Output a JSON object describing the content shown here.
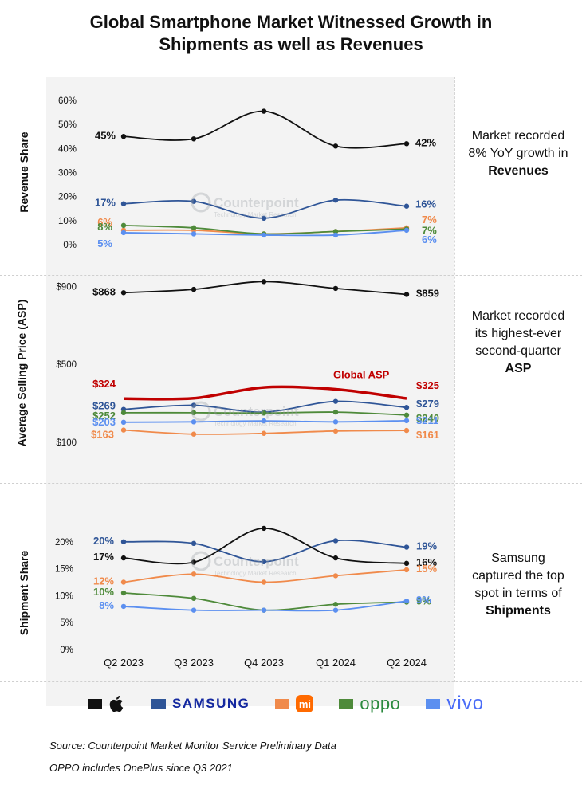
{
  "title": {
    "line1": "Global Smartphone Market Witnessed Growth in",
    "line2": "Shipments as well as Revenues"
  },
  "watermark": {
    "brand": "Counterpoint",
    "tagline": "Technology Market Research"
  },
  "colors": {
    "apple": "#111111",
    "samsung": "#2f5597",
    "xiaomi": "#f08a4b",
    "oppo": "#4e8a3a",
    "vivo": "#5b8ff0",
    "global_asp": "#c00000"
  },
  "panels": {
    "revenue": {
      "ylabel": "Revenue Share",
      "note_pre": "Market recorded 8% YoY growth in",
      "note_bold": "Revenues"
    },
    "asp": {
      "ylabel": "Average Selling Price (ASP)",
      "note_pre": "Market recorded its highest-ever second-quarter",
      "note_bold": "ASP"
    },
    "shipment": {
      "ylabel": "Shipment Share",
      "note_pre": "Samsung captured the top spot in terms of",
      "note_bold": "Shipments"
    }
  },
  "legend": [
    {
      "brand": "apple",
      "icon": "apple-logo-icon",
      "label": ""
    },
    {
      "brand": "samsung",
      "label": "SAMSUNG"
    },
    {
      "brand": "xiaomi",
      "icon": "xiaomi-logo-icon",
      "label": "mi"
    },
    {
      "brand": "oppo",
      "label": "oppo"
    },
    {
      "brand": "vivo",
      "label": "vivo"
    }
  ],
  "source": {
    "line1": "Source: Counterpoint Market Monitor Service Preliminary Data",
    "line2": "OPPO includes OnePlus since Q3 2021"
  },
  "chart_data": [
    {
      "type": "line",
      "ylabel": "Revenue Share",
      "categories": [
        "Q2 2023",
        "Q3 2023",
        "Q4 2023",
        "Q1 2024",
        "Q2 2024"
      ],
      "yticks": [
        "0%",
        "10%",
        "20%",
        "30%",
        "40%",
        "50%",
        "60%"
      ],
      "ylim": [
        0,
        60
      ],
      "series": [
        {
          "brand": "apple",
          "values": [
            45,
            44,
            55.5,
            41,
            42
          ],
          "start_label": "45%",
          "end_label": "42%"
        },
        {
          "brand": "samsung",
          "values": [
            17,
            18,
            11,
            18.5,
            16
          ],
          "start_label": "17%",
          "end_label": "16%"
        },
        {
          "brand": "xiaomi",
          "values": [
            6,
            6,
            4.5,
            5.5,
            7
          ],
          "start_label": "6%",
          "end_label": "7%"
        },
        {
          "brand": "oppo",
          "values": [
            8,
            7,
            4.5,
            5.5,
            6.5
          ],
          "start_label": "8%",
          "end_label": "7%"
        },
        {
          "brand": "vivo",
          "values": [
            5,
            4.5,
            4,
            4,
            6
          ],
          "start_label": "5%",
          "end_label": "6%"
        }
      ]
    },
    {
      "type": "line",
      "ylabel": "Average Selling Price (ASP)",
      "categories": [
        "Q2 2023",
        "Q3 2023",
        "Q4 2023",
        "Q1 2024",
        "Q2 2024"
      ],
      "yticks": [
        "$100",
        "$500",
        "$900"
      ],
      "ylim": [
        100,
        1000
      ],
      "series": [
        {
          "brand": "apple",
          "values": [
            868,
            885,
            925,
            890,
            859
          ],
          "start_label": "$868",
          "end_label": "$859"
        },
        {
          "name": "Global ASP",
          "brand": "global_asp",
          "values": [
            324,
            326,
            382,
            372,
            325
          ],
          "start_label": "$324",
          "end_label": "$325"
        },
        {
          "brand": "samsung",
          "values": [
            269,
            290,
            255,
            310,
            279
          ],
          "start_label": "$269",
          "end_label": "$279"
        },
        {
          "brand": "oppo",
          "values": [
            252,
            252,
            250,
            255,
            240
          ],
          "start_label": "$252",
          "end_label": "$240"
        },
        {
          "brand": "vivo",
          "values": [
            203,
            205,
            210,
            205,
            211
          ],
          "start_label": "$203",
          "end_label": "$211"
        },
        {
          "brand": "xiaomi",
          "values": [
            163,
            142,
            146,
            158,
            161
          ],
          "start_label": "$163",
          "end_label": "$161"
        }
      ]
    },
    {
      "type": "line",
      "ylabel": "Shipment Share",
      "categories": [
        "Q2 2023",
        "Q3 2023",
        "Q4 2023",
        "Q1 2024",
        "Q2 2024"
      ],
      "yticks": [
        "0%",
        "5%",
        "10%",
        "15%",
        "20%"
      ],
      "ylim": [
        0,
        25
      ],
      "series": [
        {
          "brand": "samsung",
          "values": [
            20,
            19.7,
            16.3,
            20.2,
            19
          ],
          "start_label": "20%",
          "end_label": "19%"
        },
        {
          "brand": "apple",
          "values": [
            17,
            16.2,
            22.5,
            17,
            16
          ],
          "start_label": "17%",
          "end_label": "16%"
        },
        {
          "brand": "xiaomi",
          "values": [
            12.5,
            14,
            12.5,
            13.7,
            14.8
          ],
          "start_label": "12%",
          "end_label": "15%"
        },
        {
          "brand": "oppo",
          "values": [
            10.5,
            9.5,
            7.3,
            8.4,
            8.8
          ],
          "start_label": "10%",
          "end_label": "9%"
        },
        {
          "brand": "vivo",
          "values": [
            8,
            7.3,
            7.3,
            7.3,
            9
          ],
          "start_label": "8%",
          "end_label": "9%"
        }
      ]
    }
  ]
}
